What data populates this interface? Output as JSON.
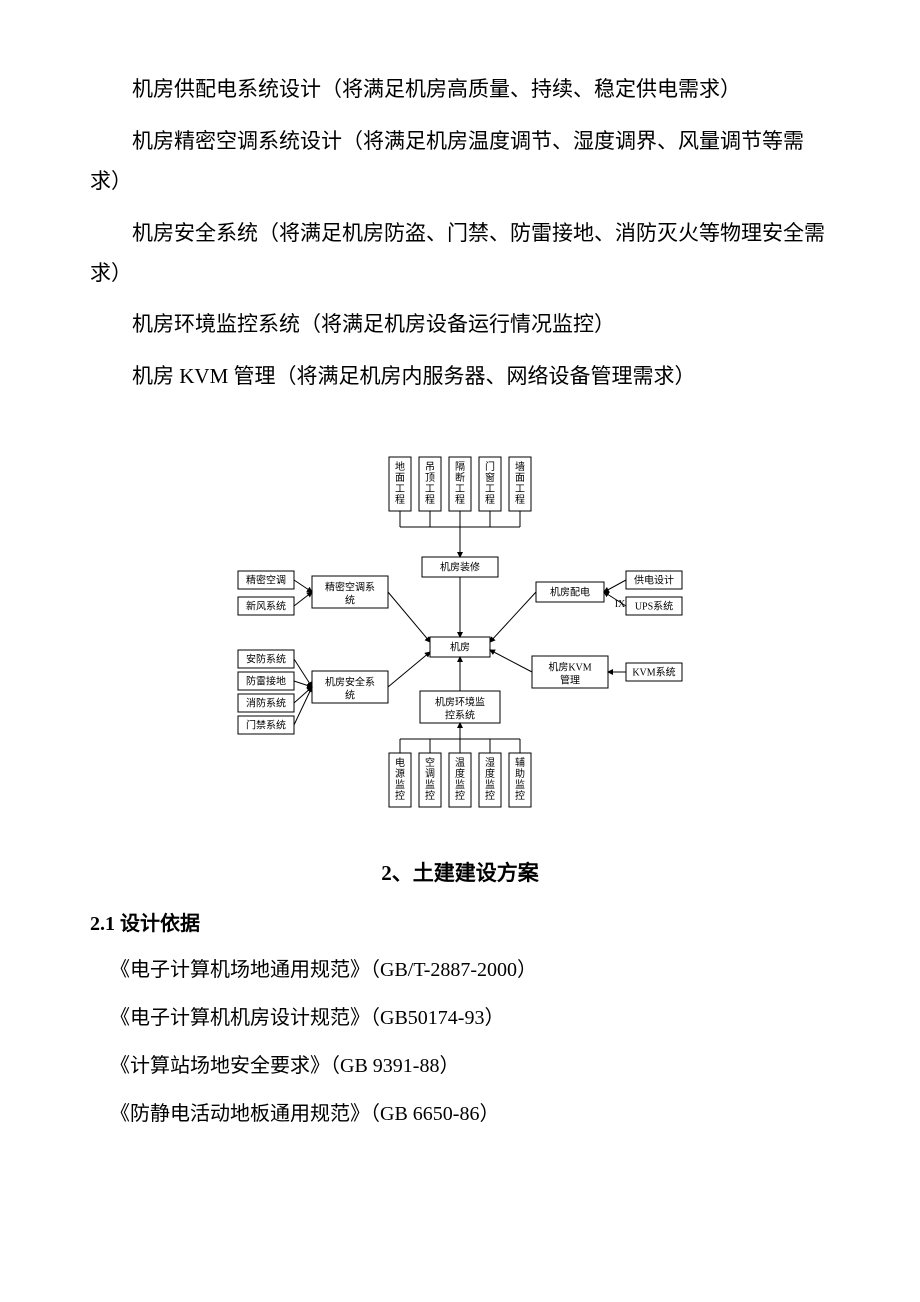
{
  "paragraphs": {
    "p1": "机房供配电系统设计（将满足机房高质量、持续、稳定供电需求）",
    "p2": "机房精密空调系统设计（将满足机房温度调节、湿度调界、风量调节等需求）",
    "p3": "机房安全系统（将满足机房防盗、门禁、防雷接地、消防灭火等物理安全需求）",
    "p4": "机房环境监控系统（将满足机房设备运行情况监控）",
    "p5": "机房 KVM 管理（将满足机房内服务器、网络设备管理需求）"
  },
  "section2": {
    "title": "2、土建建设方案",
    "sub1": "2.1 设计依据",
    "refs": {
      "r1": "《电子计算机场地通用规范》（GB/T-2887-2000）",
      "r2": "《电子计算机机房设计规范》（GB50174-93）",
      "r3": "《计算站场地安全要求》（GB 9391-88）",
      "r4": "《防静电活动地板通用规范》（GB 6650-86）"
    }
  },
  "diagram": {
    "type": "tree",
    "stroke": "#000000",
    "bg": "#ffffff",
    "font_size": 10,
    "watermark_text": "IX",
    "watermark_color": "#e5e5e5",
    "center": {
      "label": "机房"
    },
    "spokes": {
      "top": {
        "label": "机房装修"
      },
      "left1": {
        "label": "精密空调系统"
      },
      "right1": {
        "label": "机房配电"
      },
      "left2": {
        "label": "机房安全系统"
      },
      "right2": {
        "label": "机房KVM管理"
      },
      "bottom": {
        "label": "机房环境监控系统"
      }
    },
    "top_leaves": [
      {
        "label": "地面工程"
      },
      {
        "label": "吊顶工程"
      },
      {
        "label": "隔断工程"
      },
      {
        "label": "门窗工程"
      },
      {
        "label": "墙面工程"
      }
    ],
    "left1_leaves": [
      {
        "label": "精密空调"
      },
      {
        "label": "新风系统"
      }
    ],
    "right1_leaves": [
      {
        "label": "供电设计"
      },
      {
        "label": "UPS系统"
      }
    ],
    "left2_leaves": [
      {
        "label": "安防系统"
      },
      {
        "label": "防雷接地"
      },
      {
        "label": "消防系统"
      },
      {
        "label": "门禁系统"
      }
    ],
    "right2_leaves": [
      {
        "label": "KVM系统"
      }
    ],
    "bottom_leaves": [
      {
        "label": "电源监控"
      },
      {
        "label": "空调监控"
      },
      {
        "label": "温度监控"
      },
      {
        "label": "湿度监控"
      },
      {
        "label": "辅助监控"
      }
    ]
  }
}
